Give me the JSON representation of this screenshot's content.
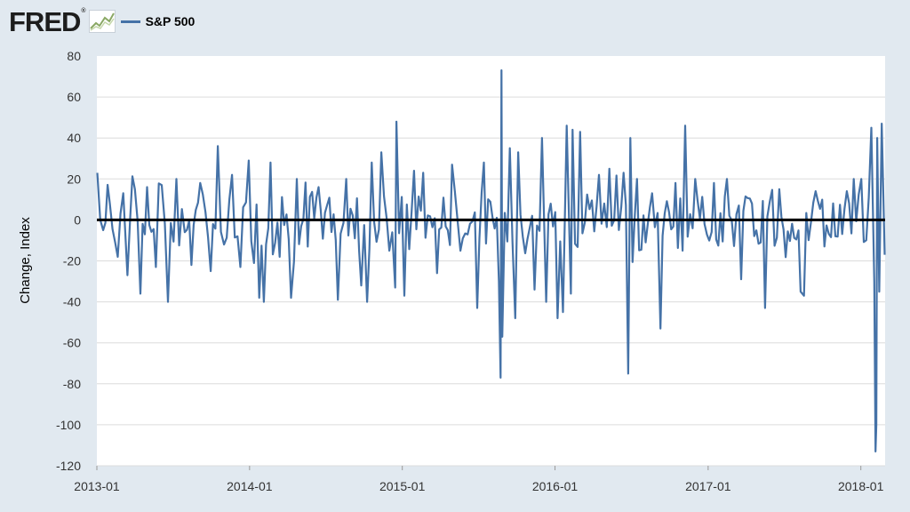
{
  "header": {
    "logo_text": "FRED",
    "logo_reg": "®"
  },
  "chart_data": {
    "type": "line",
    "title": "",
    "xlabel": "",
    "ylabel": "Change, Index",
    "ylim": [
      -120,
      80
    ],
    "yticks": [
      80,
      60,
      40,
      20,
      0,
      -20,
      -40,
      -60,
      -80,
      -100,
      -120
    ],
    "xlim": [
      "2013-01-01",
      "2018-02-28"
    ],
    "xticks": [
      "2013-01",
      "2014-01",
      "2015-01",
      "2016-01",
      "2017-01",
      "2018-01"
    ],
    "grid": true,
    "legend_placement": "top-left",
    "zero_line": true,
    "colors": {
      "series": "#4572a7",
      "zero_line": "#000000",
      "plot_bg": "#ffffff",
      "page_bg": "#e1e9f0",
      "grid": "#dcdcdc"
    },
    "series": [
      {
        "name": "S&P 500",
        "points": [
          [
            "2013-01-02",
            23
          ],
          [
            "2013-01-16",
            -5
          ],
          [
            "2013-02-01",
            8
          ],
          [
            "2013-02-20",
            -18
          ],
          [
            "2013-03-05",
            13
          ],
          [
            "2013-03-15",
            -27
          ],
          [
            "2013-04-02",
            15
          ],
          [
            "2013-04-15",
            -36
          ],
          [
            "2013-05-01",
            16
          ],
          [
            "2013-05-22",
            -23
          ],
          [
            "2013-06-05",
            17
          ],
          [
            "2013-06-20",
            -40
          ],
          [
            "2013-07-10",
            20
          ],
          [
            "2013-07-30",
            -6
          ],
          [
            "2013-08-15",
            -22
          ],
          [
            "2013-09-05",
            18
          ],
          [
            "2013-09-30",
            -25
          ],
          [
            "2013-10-17",
            36
          ],
          [
            "2013-11-01",
            -12
          ],
          [
            "2013-11-20",
            22
          ],
          [
            "2013-12-10",
            -23
          ],
          [
            "2013-12-30",
            29
          ],
          [
            "2014-01-24",
            -38
          ],
          [
            "2014-02-04",
            -40
          ],
          [
            "2014-02-20",
            28
          ],
          [
            "2014-03-14",
            -18
          ],
          [
            "2014-04-10",
            -38
          ],
          [
            "2014-04-24",
            20
          ],
          [
            "2014-05-20",
            -13
          ],
          [
            "2014-06-15",
            16
          ],
          [
            "2014-07-31",
            -39
          ],
          [
            "2014-08-20",
            20
          ],
          [
            "2014-09-25",
            -32
          ],
          [
            "2014-10-09",
            -40
          ],
          [
            "2014-10-20",
            28
          ],
          [
            "2014-11-12",
            33
          ],
          [
            "2014-12-01",
            -15
          ],
          [
            "2014-12-15",
            -33
          ],
          [
            "2014-12-18",
            48
          ],
          [
            "2015-01-06",
            -37
          ],
          [
            "2015-01-29",
            24
          ],
          [
            "2015-02-20",
            23
          ],
          [
            "2015-03-25",
            -26
          ],
          [
            "2015-04-30",
            27
          ],
          [
            "2015-05-20",
            -15
          ],
          [
            "2015-06-29",
            -43
          ],
          [
            "2015-07-15",
            28
          ],
          [
            "2015-08-20",
            -30
          ],
          [
            "2015-08-24",
            -77
          ],
          [
            "2015-08-26",
            73
          ],
          [
            "2015-08-28",
            -57
          ],
          [
            "2015-09-15",
            35
          ],
          [
            "2015-09-28",
            -48
          ],
          [
            "2015-10-05",
            33
          ],
          [
            "2015-11-13",
            -34
          ],
          [
            "2015-12-01",
            40
          ],
          [
            "2015-12-11",
            -40
          ],
          [
            "2016-01-07",
            -48
          ],
          [
            "2016-01-20",
            -45
          ],
          [
            "2016-01-29",
            46
          ],
          [
            "2016-02-08",
            -36
          ],
          [
            "2016-02-12",
            44
          ],
          [
            "2016-03-01",
            43
          ],
          [
            "2016-04-15",
            22
          ],
          [
            "2016-05-10",
            25
          ],
          [
            "2016-06-13",
            23
          ],
          [
            "2016-06-24",
            -75
          ],
          [
            "2016-06-29",
            40
          ],
          [
            "2016-07-15",
            20
          ],
          [
            "2016-08-20",
            13
          ],
          [
            "2016-09-09",
            -53
          ],
          [
            "2016-10-15",
            18
          ],
          [
            "2016-11-01",
            -15
          ],
          [
            "2016-11-07",
            46
          ],
          [
            "2016-12-01",
            20
          ],
          [
            "2017-01-15",
            18
          ],
          [
            "2017-02-15",
            20
          ],
          [
            "2017-03-21",
            -29
          ],
          [
            "2017-05-17",
            -43
          ],
          [
            "2017-06-20",
            15
          ],
          [
            "2017-08-10",
            -35
          ],
          [
            "2017-08-18",
            -37
          ],
          [
            "2017-09-15",
            14
          ],
          [
            "2017-11-01",
            -8
          ],
          [
            "2017-12-15",
            20
          ],
          [
            "2018-01-02",
            20
          ],
          [
            "2018-01-26",
            45
          ],
          [
            "2018-02-02",
            -30
          ],
          [
            "2018-02-05",
            -113
          ],
          [
            "2018-02-07",
            -100
          ],
          [
            "2018-02-09",
            40
          ],
          [
            "2018-02-14",
            -35
          ],
          [
            "2018-02-20",
            47
          ],
          [
            "2018-02-27",
            -17
          ]
        ]
      }
    ]
  }
}
